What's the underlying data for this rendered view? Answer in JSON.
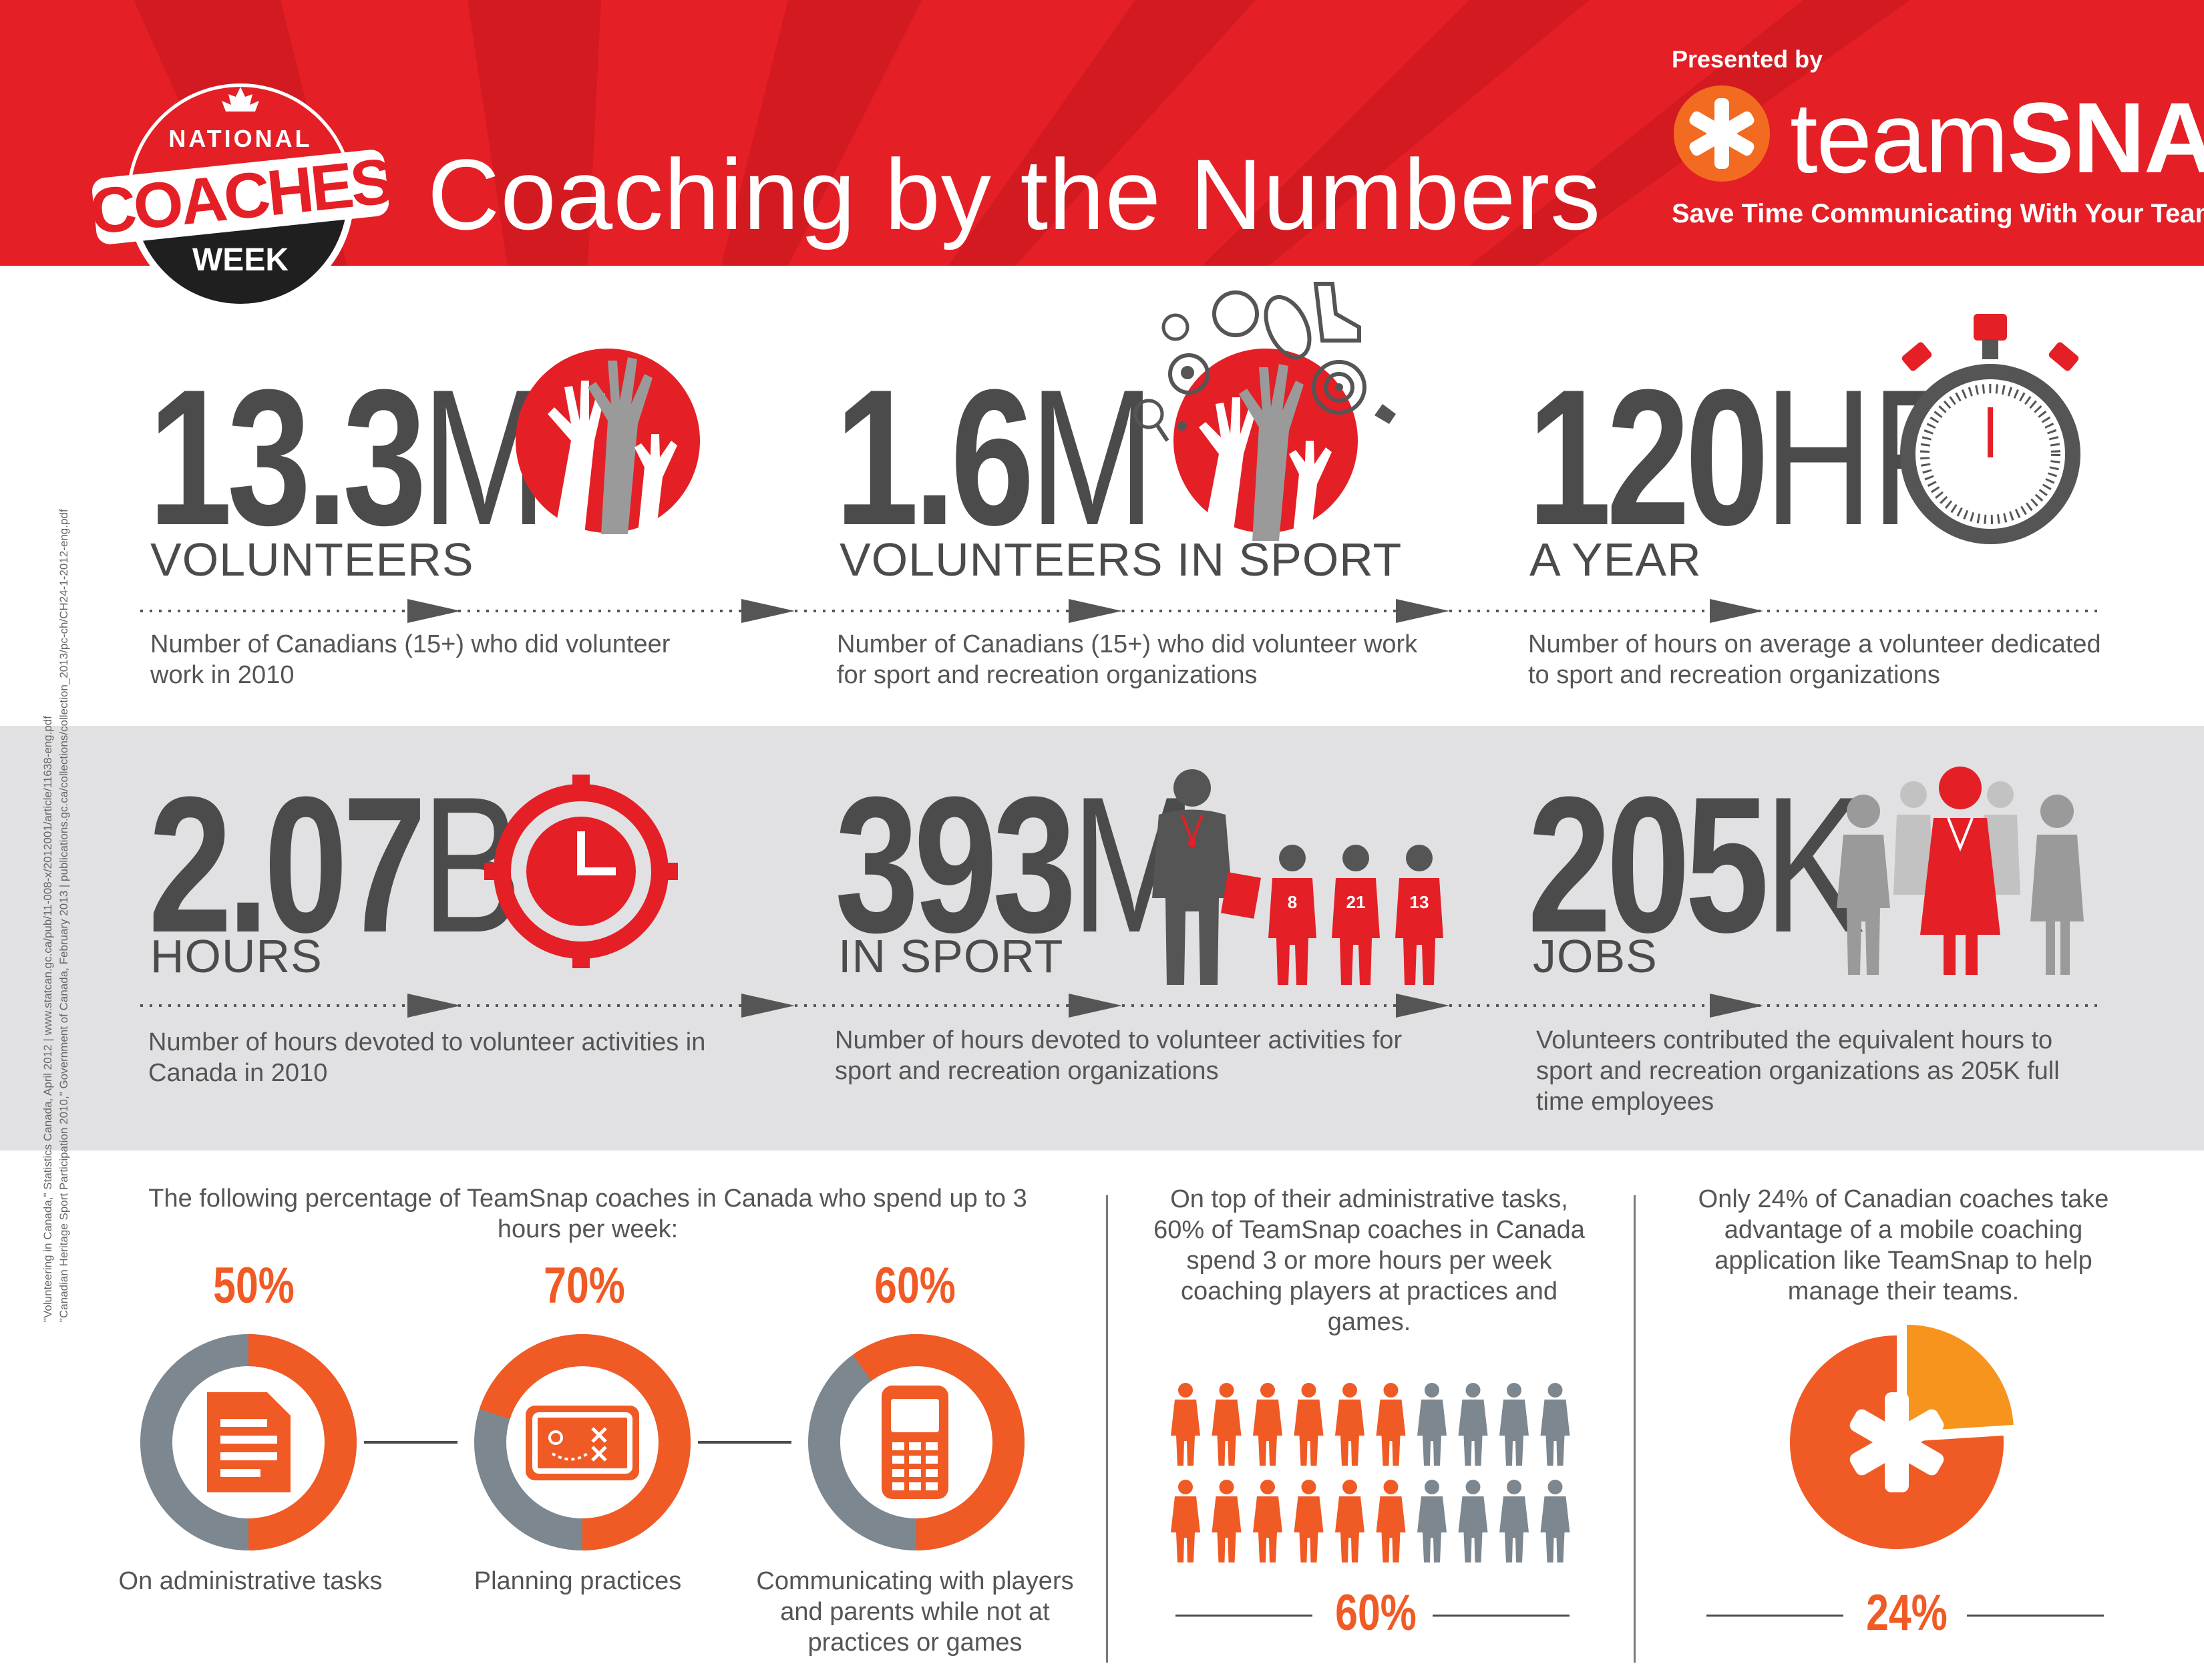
{
  "header": {
    "logo": {
      "line1": "NATIONAL",
      "line2": "COACHES",
      "line3": "WEEK"
    },
    "title": "Coaching by the Numbers",
    "presented_by": "Presented by",
    "brand": {
      "part1": "team",
      "part2": "SNAP"
    },
    "tagline": "Save Time Communicating With Your Team"
  },
  "stats_row1": [
    {
      "number": "13.3",
      "unit": "M",
      "label": "VOLUNTEERS",
      "desc": "Number of Canadians (15+) who did volunteer work in 2010"
    },
    {
      "number": "1.6",
      "unit": "M",
      "label": "VOLUNTEERS IN SPORT",
      "desc": "Number of Canadians (15+) who did volunteer work for sport and recreation organizations"
    },
    {
      "number": "120",
      "unit": "HR",
      "label": "A YEAR",
      "desc": "Number of hours on average a volunteer dedicated to sport and recreation organizations"
    }
  ],
  "stats_row2": [
    {
      "number": "2.07",
      "unit": "B",
      "label": "HOURS",
      "desc": "Number of hours devoted to volunteer activities in Canada in 2010"
    },
    {
      "number": "393",
      "unit": "M",
      "label": "IN SPORT",
      "desc": "Number of hours devoted to volunteer activities for sport and recreation organizations"
    },
    {
      "number": "205",
      "unit": "K",
      "label": "JOBS",
      "desc": "Volunteers contributed the equivalent hours to sport and recreation organizations as 205K full time employees"
    }
  ],
  "jersey_numbers": [
    "8",
    "21",
    "13"
  ],
  "lower": {
    "intro": "The following percentage of TeamSnap coaches in Canada who spend up to 3 hours per week:",
    "donuts": [
      {
        "percent": "50%",
        "value": 50,
        "label": "On administrative tasks",
        "icon": "document-icon"
      },
      {
        "percent": "70%",
        "value": 70,
        "label": "Planning practices",
        "icon": "playbook-icon"
      },
      {
        "percent": "60%",
        "value": 60,
        "label": "Communicating with players and parents while not at practices or games",
        "icon": "phone-icon"
      }
    ],
    "practices": {
      "text": "On top of their administrative tasks, 60% of TeamSnap coaches in Canada spend 3 or more hours per week coaching players at practices and games.",
      "percent": "60%",
      "value": 60
    },
    "mobile": {
      "text": "Only 24% of Canadian coaches take advantage of a mobile coaching application like TeamSnap to help manage their teams.",
      "percent": "24%",
      "value": 24
    }
  },
  "sources": {
    "line1": "\"Volunteering in Canada,\" Statistics Canada, April 2012  |  www.statcan.gc.ca/pub/11-008-x/2012001/article/11638-eng.pdf",
    "line2": "\"Canadian Heritage Sport Participation 2010,\" Government of Canada, February 2013  |  publications.gc.ca/collections/collection_2013/pc-ch/CH24-1-2012-eng.pdf"
  },
  "colors": {
    "red": "#e41f26",
    "orange": "#f05a24",
    "gray": "#7c8790",
    "dark": "#4b4b4b"
  }
}
